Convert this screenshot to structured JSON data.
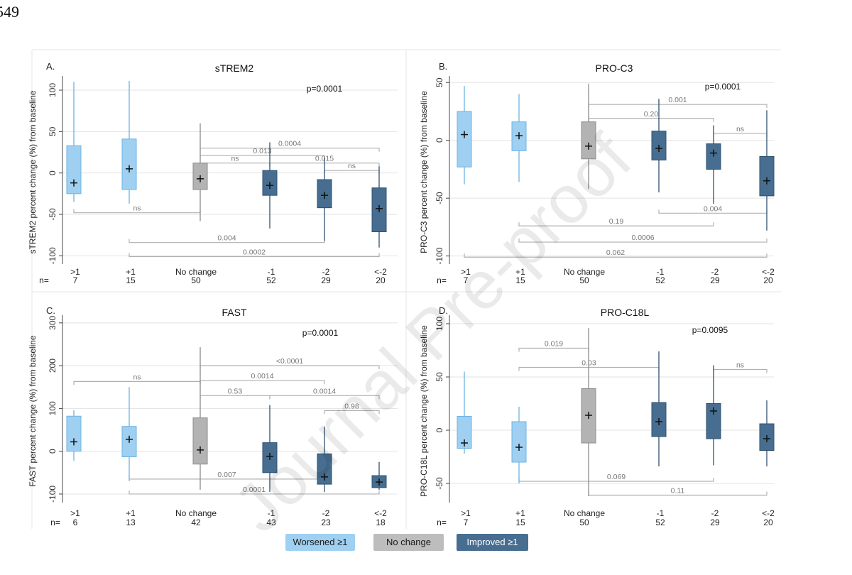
{
  "page_number": "549",
  "watermark": "Journal Pre-proof",
  "colors": {
    "worsened": "#9fd0f1",
    "worsened_edge": "#6cb3e2",
    "no_change": "#b3b3b3",
    "no_change_edge": "#8c8c8c",
    "improved": "#476e90",
    "improved_edge": "#2f5070",
    "grid": "#e3e3e3",
    "bracket": "#b0b0b0"
  },
  "legend": [
    {
      "label": "Worsened ≥1",
      "color": "#9fd0f1",
      "text_color": "#1a1a1a"
    },
    {
      "label": "No change",
      "color": "#bdbdbd",
      "text_color": "#1a1a1a"
    },
    {
      "label": "Improved ≥1",
      "color": "#476e90",
      "text_color": "#ffffff"
    }
  ],
  "chart_data": [
    {
      "type": "box",
      "panel": "A.",
      "title": "sTREM2",
      "ylabel": "sTREM2 percent change (%) from baseline",
      "ylim": [
        -110,
        112
      ],
      "yticks": [
        -100,
        -50,
        0,
        50,
        100
      ],
      "p_value": "p=0.0001",
      "categories": [
        ">1",
        "+1",
        "No change",
        "-1",
        "-2",
        "<-2"
      ],
      "n_label": "n=",
      "n": [
        "7",
        "15",
        "50",
        "52",
        "29",
        "20"
      ],
      "boxes": [
        {
          "group": "worsened",
          "min": -35,
          "q1": -25,
          "q3": 33,
          "max": 110,
          "mean": -12
        },
        {
          "group": "worsened",
          "min": -37,
          "q1": -20,
          "q3": 41,
          "max": 111,
          "mean": 5
        },
        {
          "group": "no_change",
          "min": -58,
          "q1": -20,
          "q3": 12,
          "max": 60,
          "mean": -7
        },
        {
          "group": "improved",
          "min": -67,
          "q1": -27,
          "q3": 3,
          "max": 37,
          "mean": -15
        },
        {
          "group": "improved",
          "min": -82,
          "q1": -42,
          "q3": -8,
          "max": 18,
          "mean": -27
        },
        {
          "group": "improved",
          "min": -90,
          "q1": -71,
          "q3": -18,
          "max": 8,
          "mean": -43
        }
      ],
      "brackets": [
        {
          "from": 2,
          "to": 5,
          "y": 30,
          "label": "0.0004"
        },
        {
          "from": 2,
          "to": 4,
          "y": 21,
          "label": "0.013"
        },
        {
          "from": 2,
          "to": 3,
          "y": 12,
          "label": "ns"
        },
        {
          "from": 3,
          "to": 5,
          "y": 12,
          "label": "0.015"
        },
        {
          "from": 4,
          "to": 5,
          "y": 3,
          "label": "ns"
        },
        {
          "from": 0,
          "to": 2,
          "y": -48,
          "label": "ns",
          "dir": "down"
        },
        {
          "from": 1,
          "to": 4,
          "y": -84,
          "label": "0.004",
          "dir": "down"
        },
        {
          "from": 1,
          "to": 5,
          "y": -101,
          "label": "0.0002",
          "dir": "down"
        }
      ]
    },
    {
      "type": "box",
      "panel": "B.",
      "title": "PRO-C3",
      "ylabel": "PRO-C3 percent change (%) from baseline",
      "ylim": [
        -107,
        52
      ],
      "yticks": [
        -100,
        -50,
        0,
        50
      ],
      "p_value": "p=0.0001",
      "categories": [
        ">1",
        "+1",
        "No change",
        "-1",
        "-2",
        "<-2"
      ],
      "n_label": "n=",
      "n": [
        "7",
        "15",
        "50",
        "52",
        "29",
        "20"
      ],
      "boxes": [
        {
          "group": "worsened",
          "min": -38,
          "q1": -23,
          "q3": 25,
          "max": 47,
          "mean": 5
        },
        {
          "group": "worsened",
          "min": -36,
          "q1": -9,
          "q3": 16,
          "max": 40,
          "mean": 4
        },
        {
          "group": "no_change",
          "min": -42,
          "q1": -16,
          "q3": 16,
          "max": 49,
          "mean": -5
        },
        {
          "group": "improved",
          "min": -45,
          "q1": -17,
          "q3": 8,
          "max": 36,
          "mean": -7
        },
        {
          "group": "improved",
          "min": -55,
          "q1": -25,
          "q3": -3,
          "max": 13,
          "mean": -11
        },
        {
          "group": "improved",
          "min": -78,
          "q1": -48,
          "q3": -14,
          "max": 26,
          "mean": -35
        }
      ],
      "brackets": [
        {
          "from": 2,
          "to": 5,
          "y": 31,
          "label": "0.001"
        },
        {
          "from": 2,
          "to": 4,
          "y": 19,
          "label": "0.20"
        },
        {
          "from": 4,
          "to": 5,
          "y": 6,
          "label": "ns"
        },
        {
          "from": 3,
          "to": 5,
          "y": -63,
          "label": "0.004",
          "dir": "down"
        },
        {
          "from": 1,
          "to": 4,
          "y": -74,
          "label": "0.19",
          "dir": "down"
        },
        {
          "from": 1,
          "to": 5,
          "y": -88,
          "label": "0.0006",
          "dir": "down"
        },
        {
          "from": 0,
          "to": 5,
          "y": -101,
          "label": "0.062",
          "dir": "down"
        }
      ]
    },
    {
      "type": "box",
      "panel": "C.",
      "title": "FAST",
      "ylabel": "FAST percent change (%) from baseline",
      "ylim": [
        -120,
        308
      ],
      "yticks": [
        -100,
        0,
        100,
        200,
        300
      ],
      "p_value": "p=0.0001",
      "categories": [
        ">1",
        "+1",
        "No change",
        "-1",
        "-2",
        "<-2"
      ],
      "n_label": "n=",
      "n": [
        "6",
        "13",
        "42",
        "43",
        "23",
        "18"
      ],
      "boxes": [
        {
          "group": "worsened",
          "min": -22,
          "q1": 0,
          "q3": 82,
          "max": 96,
          "mean": 22
        },
        {
          "group": "worsened",
          "min": -70,
          "q1": -13,
          "q3": 58,
          "max": 150,
          "mean": 28
        },
        {
          "group": "no_change",
          "min": -90,
          "q1": -30,
          "q3": 78,
          "max": 243,
          "mean": 3
        },
        {
          "group": "improved",
          "min": -95,
          "q1": -50,
          "q3": 20,
          "max": 108,
          "mean": -12
        },
        {
          "group": "improved",
          "min": -95,
          "q1": -77,
          "q3": -6,
          "max": 58,
          "mean": -60
        },
        {
          "group": "improved",
          "min": -90,
          "q1": -85,
          "q3": -57,
          "max": -25,
          "mean": -72
        }
      ],
      "brackets": [
        {
          "from": 2,
          "to": 5,
          "y": 200,
          "label": "<0.0001"
        },
        {
          "from": 0,
          "to": 2,
          "y": 163,
          "label": "ns"
        },
        {
          "from": 2,
          "to": 4,
          "y": 165,
          "label": "0.0014"
        },
        {
          "from": 2,
          "to": 3,
          "y": 130,
          "label": "0.53"
        },
        {
          "from": 3,
          "to": 5,
          "y": 130,
          "label": "0.0014"
        },
        {
          "from": 4,
          "to": 5,
          "y": 95,
          "label": "0.98"
        },
        {
          "from": 1,
          "to": 4,
          "y": -65,
          "label": "0.007",
          "dir": "down"
        },
        {
          "from": 1,
          "to": 5,
          "y": -100,
          "label": "0.0001",
          "dir": "down"
        }
      ]
    },
    {
      "type": "box",
      "panel": "D.",
      "title": "PRO-C18L",
      "ylabel": "PRO-C18L percent change (%) from baseline",
      "ylim": [
        -68,
        104
      ],
      "yticks": [
        -50,
        0,
        50,
        100
      ],
      "p_value": "p=0.0095",
      "categories": [
        ">1",
        "+1",
        "No change",
        "-1",
        "-2",
        "<-2"
      ],
      "n_label": "n=",
      "n": [
        "7",
        "15",
        "50",
        "52",
        "29",
        "20"
      ],
      "boxes": [
        {
          "group": "worsened",
          "min": -22,
          "q1": -17,
          "q3": 13,
          "max": 55,
          "mean": -12
        },
        {
          "group": "worsened",
          "min": -50,
          "q1": -30,
          "q3": 8,
          "max": 22,
          "mean": -16
        },
        {
          "group": "no_change",
          "min": -62,
          "q1": -12,
          "q3": 39,
          "max": 96,
          "mean": 14
        },
        {
          "group": "improved",
          "min": -34,
          "q1": -6,
          "q3": 26,
          "max": 74,
          "mean": 8
        },
        {
          "group": "improved",
          "min": -33,
          "q1": -8,
          "q3": 25,
          "max": 61,
          "mean": 18
        },
        {
          "group": "improved",
          "min": -34,
          "q1": -19,
          "q3": 6,
          "max": 28,
          "mean": -8
        }
      ],
      "brackets": [
        {
          "from": 1,
          "to": 2,
          "y": 77,
          "label": "0.019"
        },
        {
          "from": 1,
          "to": 3,
          "y": 59,
          "label": "0.03"
        },
        {
          "from": 4,
          "to": 5,
          "y": 57,
          "label": "ns"
        },
        {
          "from": 1,
          "to": 4,
          "y": -48,
          "label": "0.069",
          "dir": "down"
        },
        {
          "from": 2,
          "to": 5,
          "y": -61,
          "label": "0.11",
          "dir": "down"
        }
      ]
    }
  ]
}
